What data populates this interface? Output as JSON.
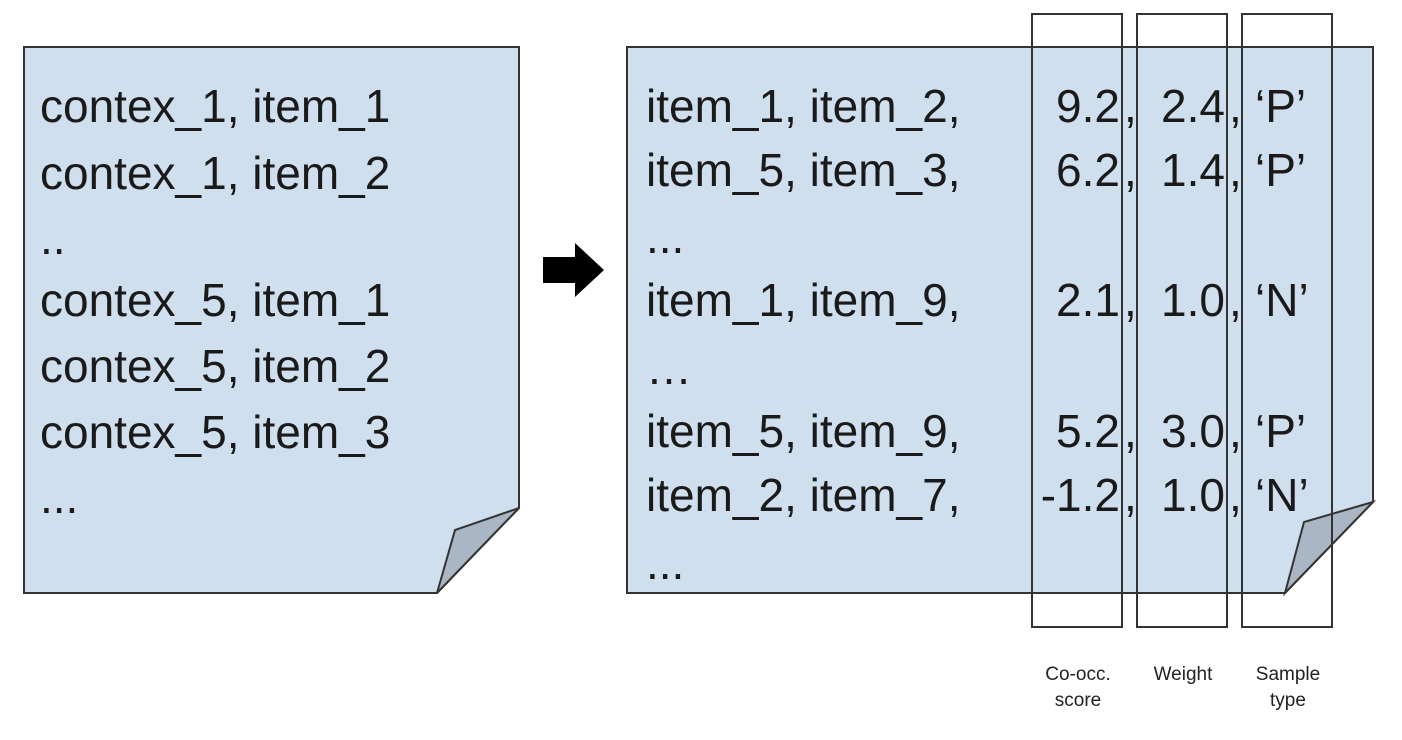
{
  "left_doc": {
    "lines": [
      "contex_1, item_1",
      "contex_1, item_2",
      "..",
      "contex_5, item_1",
      "contex_5, item_2",
      "contex_5, item_3",
      "..."
    ]
  },
  "arrow": {
    "icon": "right-arrow-icon"
  },
  "right_doc": {
    "rows": [
      {
        "pair": "item_1, item_2,",
        "score": "9.2",
        "sep1": ",",
        "weight": "2.4",
        "sep2": ",",
        "type": "‘P’"
      },
      {
        "pair": "item_5, item_3,",
        "score": "6.2",
        "sep1": ",",
        "weight": "1.4",
        "sep2": ",",
        "type": "‘P’"
      },
      {
        "pair": "...",
        "score": "",
        "sep1": "",
        "weight": "",
        "sep2": "",
        "type": ""
      },
      {
        "pair": "item_1, item_9,",
        "score": "2.1",
        "sep1": ",",
        "weight": "1.0",
        "sep2": ",",
        "type": "‘N’"
      },
      {
        "pair": "…",
        "score": "",
        "sep1": "",
        "weight": "",
        "sep2": "",
        "type": ""
      },
      {
        "pair": "item_5, item_9,",
        "score": "5.2",
        "sep1": ",",
        "weight": "3.0",
        "sep2": ",",
        "type": "‘P’"
      },
      {
        "pair": "item_2, item_7,",
        "score": "-1.2",
        "sep1": ",",
        "weight": "1.0",
        "sep2": ",",
        "type": "‘N’"
      },
      {
        "pair": "...",
        "score": "",
        "sep1": "",
        "weight": "",
        "sep2": "",
        "type": ""
      }
    ]
  },
  "column_labels": {
    "score": "Co-occ. score",
    "weight": "Weight",
    "type": "Sample type"
  },
  "colors": {
    "page_fill": "#cfdfee",
    "fold_fill": "#aab6c4",
    "stroke": "#333333"
  }
}
